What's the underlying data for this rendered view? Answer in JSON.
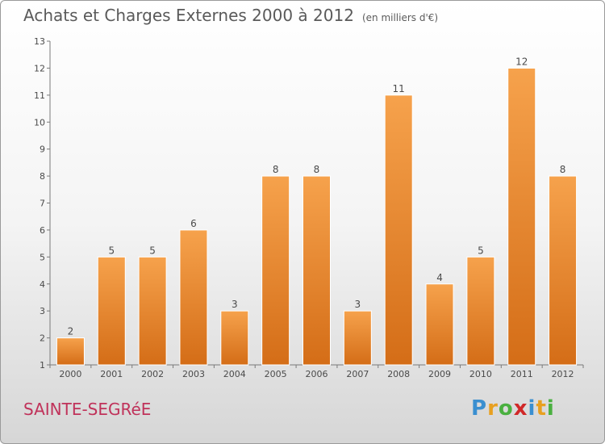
{
  "header": {
    "title": "Achats et Charges Externes 2000 à 2012",
    "unit": "(en milliers d'€)"
  },
  "footer": {
    "commune": "SAINTE-SEGRéE",
    "logo_letters": [
      "P",
      "r",
      "o",
      "x",
      "i",
      "t",
      "i"
    ],
    "logo_colors": [
      "#3a8fd0",
      "#e8a020",
      "#4ab040",
      "#d02828",
      "#3a8fd0",
      "#e8a020",
      "#4ab040"
    ]
  },
  "chart_data": {
    "type": "bar",
    "categories": [
      "2000",
      "2001",
      "2002",
      "2003",
      "2004",
      "2005",
      "2006",
      "2007",
      "2008",
      "2009",
      "2010",
      "2011",
      "2012"
    ],
    "values": [
      2,
      5,
      5,
      6,
      3,
      8,
      8,
      3,
      11,
      4,
      5,
      12,
      8
    ],
    "data_labels": [
      "2",
      "5",
      "5",
      "6",
      "3",
      "8",
      "8",
      "3",
      "11",
      "4",
      "5",
      "12",
      "8"
    ],
    "yticks": [
      "1",
      "2",
      "3",
      "4",
      "5",
      "6",
      "7",
      "8",
      "9",
      "10",
      "11",
      "12",
      "13"
    ],
    "ylim": [
      1,
      13
    ],
    "grid": false,
    "colors": {
      "bar_light": "#f6a24c",
      "bar_dark": "#d46d17",
      "axis": "#7a7a7a",
      "text": "#4a4a4a"
    }
  }
}
